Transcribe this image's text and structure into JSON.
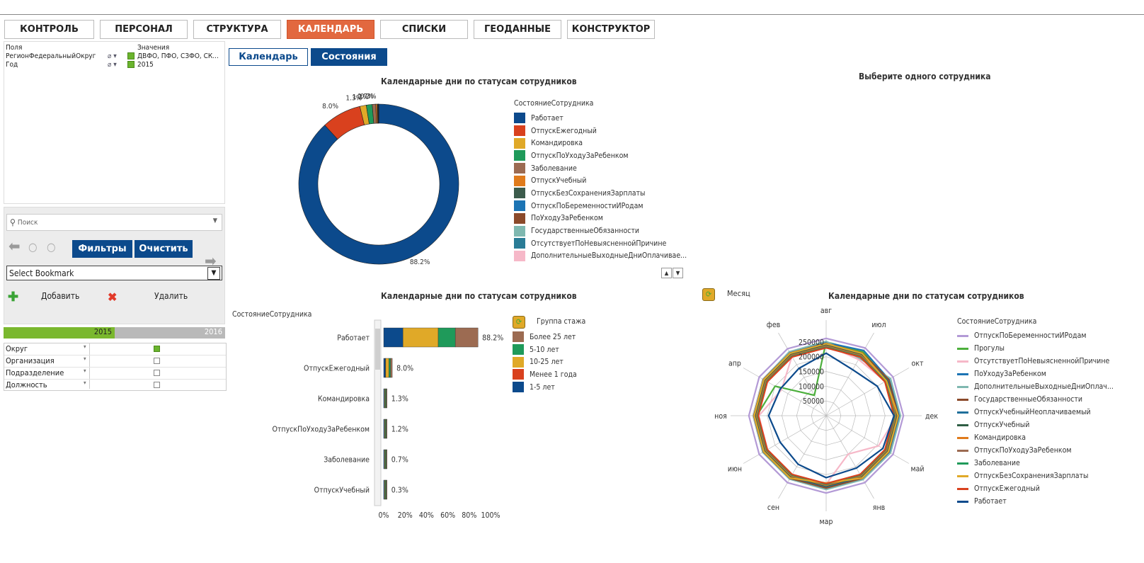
{
  "tabs": [
    {
      "label": "КОНТРОЛЬ"
    },
    {
      "label": "ПЕРСОНАЛ"
    },
    {
      "label": "СТРУКТУРА"
    },
    {
      "label": "КАЛЕНДАРЬ",
      "active": true
    },
    {
      "label": "СПИСКИ"
    },
    {
      "label": "ГЕОДАННЫЕ"
    },
    {
      "label": "КОНСТРУКТОР"
    }
  ],
  "subtabs": {
    "calendar": "Календарь",
    "states": "Состояния"
  },
  "fields": {
    "header_fields": "Поля",
    "header_values": "Значения",
    "rows": [
      {
        "field": "РегионФедеральныйОкруг",
        "value": "ДВФО, ПФО, СЗФО, СК..."
      },
      {
        "field": "Год",
        "value": "2015"
      }
    ]
  },
  "search": {
    "placeholder": "Поиск"
  },
  "buttons": {
    "filters": "Фильтры",
    "clear": "Очистить",
    "add": "Добавить",
    "delete": "Удалить"
  },
  "bookmark": {
    "value": "Select Bookmark"
  },
  "years": {
    "selected": "2015",
    "other": "2016"
  },
  "selectors": [
    {
      "label": "Округ"
    },
    {
      "label": "Организация"
    },
    {
      "label": "Подразделение"
    },
    {
      "label": "Должность"
    }
  ],
  "colors": {
    "accent": "#e2683f",
    "brand": "#0c4a8c",
    "year_selected": "#7ab82e"
  },
  "top_right_title": "Выберите одного сотрудника",
  "chart_data": [
    {
      "type": "pie",
      "title": "Календарные дни по статусам сотрудников",
      "legend_title": "СостояниеСотрудника",
      "legend_position": "right",
      "slices": [
        {
          "name": "Работает",
          "value": 88.2,
          "color": "#0c4a8c",
          "label": "88.2%"
        },
        {
          "name": "ОтпускЕжегодный",
          "value": 8.0,
          "color": "#d9411e",
          "label": "8.0%"
        },
        {
          "name": "Командировка",
          "value": 1.3,
          "color": "#e0a928",
          "label": "1.3%"
        },
        {
          "name": "ОтпускПоУходуЗаРебенком",
          "value": 1.2,
          "color": "#1f9a5a",
          "label": "1.2%"
        },
        {
          "name": "Заболевание",
          "value": 0.7,
          "color": "#9c6b52",
          "label": "0.7%"
        },
        {
          "name": "ОтпускУчебный",
          "value": 0.3,
          "color": "#e07b1c",
          "label": "0.3%"
        },
        {
          "name": "ОтпускБезСохраненияЗарплаты",
          "value": 0.1,
          "color": "#3c5c4c"
        },
        {
          "name": "ОтпускПоБеременностиИРодам",
          "value": 0.1,
          "color": "#1c74b4"
        },
        {
          "name": "ПоУходуЗаРебенком",
          "value": 0.05,
          "color": "#8b4a2b"
        },
        {
          "name": "ГосударственныеОбязанности",
          "value": 0.02,
          "color": "#7fb8b0"
        },
        {
          "name": "ОтсутствуетПоНевыясненнойПричине",
          "value": 0.02,
          "color": "#2a7c96"
        },
        {
          "name": "ДополнительныеВыходныеДниОплачивае...",
          "value": 0.01,
          "color": "#f6b8c8"
        }
      ]
    },
    {
      "type": "bar",
      "orientation": "horizontal",
      "stacked": true,
      "title": "Календарные дни по статусам сотрудников",
      "ylabel": "СостояниеСотрудника",
      "legend_title": "Группа стажа",
      "categories": [
        "Работает",
        "ОтпускЕжегодный",
        "Командировка",
        "ОтпускПоУходуЗаРебенком",
        "Заболевание",
        "ОтпускУчебный"
      ],
      "totals": [
        "88.2%",
        "8.0%",
        "1.3%",
        "1.2%",
        "0.7%",
        "0.3%"
      ],
      "series": [
        {
          "name": "1-5 лет",
          "color": "#0c4a8c",
          "values": [
            18,
            1.6,
            0.3,
            0.1,
            0.1,
            0.05
          ]
        },
        {
          "name": "Менее 1 года",
          "color": "#d9411e",
          "values": [
            0,
            0.3,
            0,
            0,
            0,
            0
          ]
        },
        {
          "name": "10-25 лет",
          "color": "#e0a928",
          "values": [
            33,
            3.0,
            0.5,
            0.6,
            0.4,
            0.1
          ]
        },
        {
          "name": "5-10 лет",
          "color": "#1f9a5a",
          "values": [
            16,
            1.5,
            0.3,
            0.4,
            0.1,
            0.1
          ]
        },
        {
          "name": "Более 25 лет",
          "color": "#9c6b52",
          "values": [
            21.2,
            1.6,
            0.2,
            0.1,
            0.1,
            0.05
          ]
        }
      ],
      "xticks": [
        "0%",
        "20%",
        "40%",
        "60%",
        "80%",
        "100%"
      ],
      "xlim": [
        0,
        100
      ]
    },
    {
      "type": "radar",
      "title": "Календарные дни по статусам сотрудников",
      "dimension_label": "Месяц",
      "legend_title": "СостояниеСотрудника",
      "axes": [
        "авг",
        "июл",
        "окт",
        "дек",
        "май",
        "янв",
        "мар",
        "сен",
        "июн",
        "ноя",
        "апр",
        "фев"
      ],
      "rings": [
        50000,
        100000,
        150000,
        200000,
        250000
      ],
      "ring_labels": [
        "50000",
        "100000",
        "150000",
        "200000",
        "250000"
      ],
      "max": 300000,
      "series": [
        {
          "name": "ОтпускПоБеременностиИРодам",
          "color": "#b39ad6",
          "values": [
            262000,
            265000,
            262000,
            262000,
            262000,
            262000,
            262000,
            262000,
            262000,
            262000,
            262000,
            262000
          ]
        },
        {
          "name": "Прогулы",
          "color": "#4caf3c",
          "values": [
            250000,
            250000,
            240000,
            248000,
            245000,
            238000,
            238000,
            232000,
            232000,
            235000,
            200000,
            80000
          ]
        },
        {
          "name": "ОтсутствуетПоНевыясненнойПричине",
          "color": "#f6b8c8",
          "values": [
            240000,
            220000,
            232000,
            240000,
            205000,
            150000,
            232000,
            230000,
            230000,
            228000,
            175000,
            232000
          ]
        },
        {
          "name": "ПоУходуЗаРебенком",
          "color": "#1c74b4",
          "values": [
            248000,
            255000,
            246000,
            250000,
            248000,
            245000,
            245000,
            242000,
            242000,
            240000,
            240000,
            245000
          ]
        },
        {
          "name": "ДополнительныеВыходныеДниОплач...",
          "color": "#7fb8b0",
          "values": [
            252000,
            225000,
            252000,
            252000,
            252000,
            250000,
            250000,
            248000,
            248000,
            246000,
            246000,
            250000
          ]
        },
        {
          "name": "ГосударственныеОбязанности",
          "color": "#8b4a2b",
          "values": [
            245000,
            245000,
            245000,
            245000,
            245000,
            245000,
            245000,
            245000,
            245000,
            245000,
            245000,
            245000
          ]
        },
        {
          "name": "ОтпускУчебныйНеоплачиваемый",
          "color": "#1f6f9b",
          "values": [
            240000,
            240000,
            240000,
            240000,
            240000,
            240000,
            240000,
            240000,
            240000,
            240000,
            240000,
            240000
          ]
        },
        {
          "name": "ОтпускУчебный",
          "color": "#2e5e44",
          "values": [
            238000,
            238000,
            238000,
            238000,
            238000,
            238000,
            238000,
            238000,
            238000,
            238000,
            238000,
            238000
          ]
        },
        {
          "name": "Командировка",
          "color": "#e07b1c",
          "values": [
            236000,
            236000,
            236000,
            236000,
            236000,
            236000,
            236000,
            236000,
            236000,
            236000,
            236000,
            236000
          ]
        },
        {
          "name": "ОтпускПоУходуЗаРебенком",
          "color": "#9c6b52",
          "values": [
            234000,
            234000,
            234000,
            234000,
            234000,
            234000,
            234000,
            234000,
            234000,
            234000,
            234000,
            234000
          ]
        },
        {
          "name": "Заболевание",
          "color": "#1f9a5a",
          "values": [
            232000,
            232000,
            232000,
            232000,
            232000,
            232000,
            232000,
            232000,
            232000,
            232000,
            232000,
            232000
          ]
        },
        {
          "name": "ОтпускБезСохраненияЗарплаты",
          "color": "#e0a928",
          "values": [
            244000,
            244000,
            236000,
            244000,
            244000,
            244000,
            228000,
            244000,
            244000,
            244000,
            244000,
            244000
          ]
        },
        {
          "name": "ОтпускЕжегодный",
          "color": "#d9411e",
          "values": [
            230000,
            230000,
            230000,
            230000,
            230000,
            230000,
            230000,
            230000,
            230000,
            230000,
            230000,
            230000
          ]
        },
        {
          "name": "Работает",
          "color": "#0c4a8c",
          "values": [
            212000,
            180000,
            200000,
            230000,
            222000,
            205000,
            210000,
            190000,
            180000,
            195000,
            180000,
            185000
          ]
        }
      ]
    }
  ]
}
